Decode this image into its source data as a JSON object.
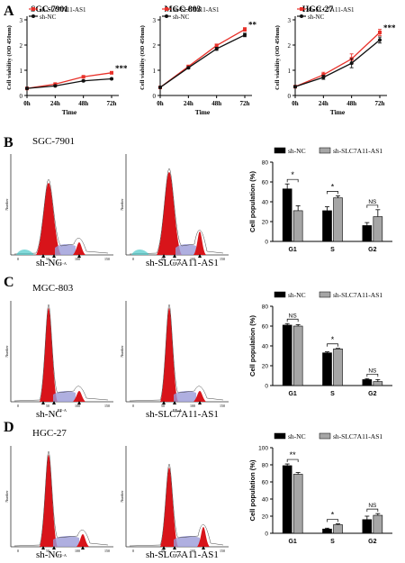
{
  "panels": {
    "A": {
      "letter": "A",
      "legend": [
        "sh-SLC7A11-AS1",
        "sh-NC"
      ],
      "colors": {
        "sh-SLC7A11-AS1": "#e8312a",
        "sh-NC": "#111111"
      },
      "charts": [
        {
          "type": "line",
          "title": "SGC-7901",
          "xlabel": "Time",
          "ylabel": "Cell viability (OD 450nm)",
          "x": [
            "0h",
            "24h",
            "48h",
            "72h"
          ],
          "yticks": [
            "0",
            "1",
            "2",
            "3"
          ],
          "ylim": [
            0,
            3
          ],
          "significance": "***",
          "series": [
            {
              "name": "sh-SLC7A11-AS1",
              "values": [
                0.28,
                0.45,
                0.74,
                0.9
              ]
            },
            {
              "name": "sh-NC",
              "values": [
                0.28,
                0.38,
                0.58,
                0.66
              ]
            }
          ],
          "errors": [
            [
              0.01,
              0.02,
              0.02,
              0.02
            ],
            [
              0.01,
              0.02,
              0.03,
              0.02
            ]
          ]
        },
        {
          "type": "line",
          "title": "MGC-803",
          "xlabel": "Time",
          "ylabel": "Cell viability (OD 450nm)",
          "x": [
            "0h",
            "24h",
            "48h",
            "72h"
          ],
          "yticks": [
            "0",
            "1",
            "2",
            "3"
          ],
          "ylim": [
            0,
            3
          ],
          "significance": "**",
          "series": [
            {
              "name": "sh-SLC7A11-AS1",
              "values": [
                0.32,
                1.15,
                1.98,
                2.62
              ]
            },
            {
              "name": "sh-NC",
              "values": [
                0.32,
                1.1,
                1.85,
                2.4
              ]
            }
          ],
          "errors": [
            [
              0.02,
              0.04,
              0.06,
              0.07
            ],
            [
              0.02,
              0.04,
              0.06,
              0.07
            ]
          ]
        },
        {
          "type": "line",
          "title": "HGC-27",
          "xlabel": "Time",
          "ylabel": "Cell viability (OD 450nm)",
          "x": [
            "0h",
            "24h",
            "48h",
            "72h"
          ],
          "yticks": [
            "0",
            "1",
            "2",
            "3"
          ],
          "ylim": [
            0,
            3
          ],
          "significance": "***",
          "series": [
            {
              "name": "sh-SLC7A11-AS1",
              "values": [
                0.35,
                0.82,
                1.45,
                2.5
              ]
            },
            {
              "name": "sh-NC",
              "values": [
                0.35,
                0.72,
                1.28,
                2.2
              ]
            }
          ],
          "errors": [
            [
              0.03,
              0.1,
              0.2,
              0.12
            ],
            [
              0.03,
              0.08,
              0.18,
              0.12
            ]
          ]
        }
      ]
    },
    "B": {
      "letter": "B",
      "cell_line": "SGC-7901",
      "hist_labels": [
        "sh-NC",
        "sh-SLC7A11-AS1"
      ],
      "bar_chart": {
        "type": "bar",
        "ylabel": "Cell population (%)",
        "categories": [
          "G1",
          "S",
          "G2"
        ],
        "ylim": [
          0,
          80
        ],
        "yticks": [
          "0",
          "20",
          "40",
          "60",
          "80"
        ],
        "legend": [
          "sh-NC",
          "sh-SLC7A11-AS1"
        ],
        "series": [
          {
            "name": "sh-NC",
            "values": [
              53,
              31,
              16
            ],
            "errors": [
              5,
              4,
              3
            ]
          },
          {
            "name": "sh-SLC7A11-AS1",
            "values": [
              31,
              44,
              25
            ],
            "errors": [
              5,
              2,
              7
            ]
          }
        ],
        "significance": [
          "*",
          "*",
          "NS"
        ],
        "colors": [
          "#000000",
          "#a6a6a6"
        ]
      }
    },
    "C": {
      "letter": "C",
      "cell_line": "MGC-803",
      "hist_labels": [
        "sh-NC",
        "sh-SLC7A11-AS1"
      ],
      "bar_chart": {
        "type": "bar",
        "ylabel": "Cell population (%)",
        "categories": [
          "G1",
          "S",
          "G2"
        ],
        "ylim": [
          0,
          80
        ],
        "yticks": [
          "0",
          "20",
          "40",
          "60",
          "80"
        ],
        "legend": [
          "sh-NC",
          "sh-SLC7A11-AS1"
        ],
        "series": [
          {
            "name": "sh-NC",
            "values": [
              61,
              33,
              6
            ],
            "errors": [
              1.5,
              1,
              1
            ]
          },
          {
            "name": "sh-SLC7A11-AS1",
            "values": [
              60,
              37,
              4
            ],
            "errors": [
              1.5,
              0.5,
              2
            ]
          }
        ],
        "significance": [
          "NS",
          "*",
          "NS"
        ],
        "colors": [
          "#000000",
          "#a6a6a6"
        ]
      }
    },
    "D": {
      "letter": "D",
      "cell_line": "HGC-27",
      "hist_labels": [
        "sh-NC",
        "sh-SLC7A11-AS1"
      ],
      "bar_chart": {
        "type": "bar",
        "ylabel": "Cell population (%)",
        "categories": [
          "G1",
          "S",
          "G2"
        ],
        "ylim": [
          0,
          100
        ],
        "yticks": [
          "0",
          "20",
          "40",
          "60",
          "80",
          "100"
        ],
        "legend": [
          "sh-NC",
          "sh-SLC7A11-AS1"
        ],
        "series": [
          {
            "name": "sh-NC",
            "values": [
              79,
              5,
              16
            ],
            "errors": [
              2,
              1,
              4
            ]
          },
          {
            "name": "sh-SLC7A11-AS1",
            "values": [
              69,
              10,
              21
            ],
            "errors": [
              2,
              1,
              2
            ]
          }
        ],
        "significance": [
          "**",
          "*",
          "NS"
        ],
        "colors": [
          "#000000",
          "#a6a6a6"
        ]
      }
    }
  },
  "histogram_axes": {
    "xlabel": "PE-A",
    "ylabel": "Number",
    "xticks": [
      "0",
      "50",
      "100",
      "150"
    ]
  }
}
